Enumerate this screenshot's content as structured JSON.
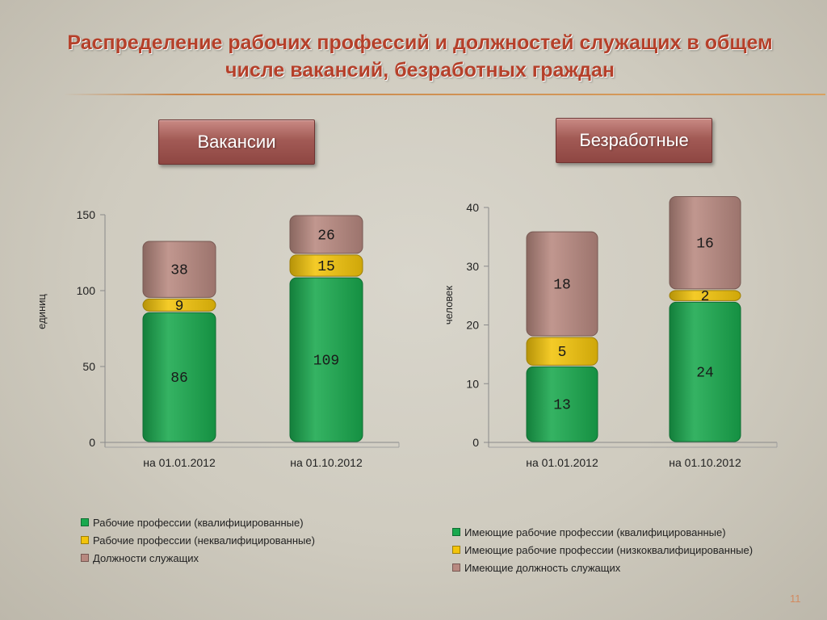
{
  "title": "Распределение рабочих профессий и должностей служащих в общем числе вакансий, безработных граждан",
  "page_number": "11",
  "colors": {
    "skilled": "#19a94e",
    "unskilled": "#f3c40b",
    "employees": "#b88980",
    "title": "#b5402a"
  },
  "chart_data": [
    {
      "type": "bar",
      "stacked": true,
      "title": "Вакансии",
      "ylabel": "единиц",
      "xlabel": "",
      "ylim": [
        0,
        150
      ],
      "yticks": [
        0,
        50,
        100,
        150
      ],
      "categories": [
        "на 01.01.2012",
        "на 01.10.2012"
      ],
      "series": [
        {
          "name": "Рабочие профессии (квалифицированные)",
          "color": "#19a94e",
          "values": [
            86,
            109
          ]
        },
        {
          "name": "Рабочие профессии (неквалифицированные)",
          "color": "#f3c40b",
          "values": [
            9,
            15
          ]
        },
        {
          "name": "Должности служащих",
          "color": "#b88980",
          "values": [
            38,
            26
          ]
        }
      ],
      "legend": "bottom"
    },
    {
      "type": "bar",
      "stacked": true,
      "title": "Безработные",
      "ylabel": "человек",
      "xlabel": "",
      "ylim": [
        0,
        40
      ],
      "yticks": [
        0,
        10,
        20,
        30,
        40
      ],
      "categories": [
        "на 01.01.2012",
        "на 01.10.2012"
      ],
      "series": [
        {
          "name": "Имеющие рабочие профессии (квалифицированные)",
          "color": "#19a94e",
          "values": [
            13,
            24
          ]
        },
        {
          "name": "Имеющие рабочие профессии (низкоквалифицированные)",
          "color": "#f3c40b",
          "values": [
            5,
            2
          ]
        },
        {
          "name": "Имеющие должность служащих",
          "color": "#b88980",
          "values": [
            18,
            16
          ]
        }
      ],
      "legend": "bottom"
    }
  ]
}
